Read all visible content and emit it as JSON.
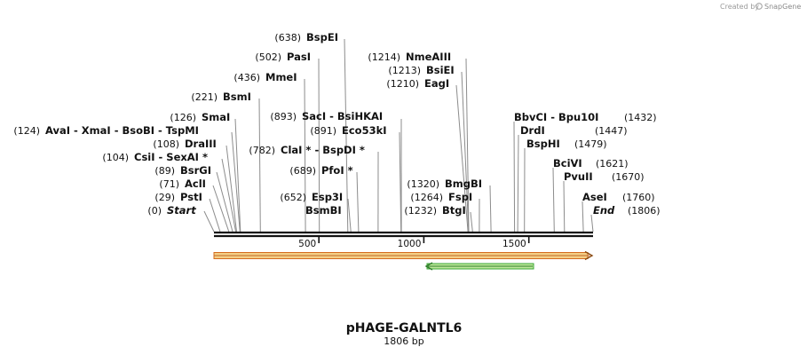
{
  "credit": {
    "text": "Created by",
    "brand": "SnapGene"
  },
  "map": {
    "name": "pHAGE-GALNTL6",
    "length_label": "1806 bp",
    "length": 1806,
    "ticks": [
      {
        "value": 500,
        "label": "500"
      },
      {
        "value": 1000,
        "label": "1000"
      },
      {
        "value": 1500,
        "label": "1500"
      }
    ],
    "colors": {
      "backbone": "#111111",
      "feature_fwd_fill": "#f4cf86",
      "feature_fwd_edge": "#d46b1f",
      "feature_rev_fill": "#bde89a",
      "feature_rev_edge": "#3aa634",
      "leader": "#8c8c8c"
    },
    "features": [
      {
        "name": "forward-feature",
        "start": 0,
        "end": 1806,
        "direction": "forward"
      },
      {
        "name": "reverse-feature",
        "start": 1010,
        "end": 1530,
        "direction": "reverse"
      }
    ]
  },
  "sites": [
    {
      "pos": 0,
      "pos_label": "(0)",
      "name": "Start",
      "italic": true
    },
    {
      "pos": 29,
      "pos_label": "(29)",
      "name": "PstI"
    },
    {
      "pos": 71,
      "pos_label": "(71)",
      "name": "AclI"
    },
    {
      "pos": 89,
      "pos_label": "(89)",
      "name": "BsrGI"
    },
    {
      "pos": 104,
      "pos_label": "(104)",
      "name": "CsiI  -  SexAI *"
    },
    {
      "pos": 108,
      "pos_label": "(108)",
      "name": "DraIII"
    },
    {
      "pos": 124,
      "pos_label": "(124)",
      "name": "AvaI  -  XmaI  -  BsoBI  -  TspMI"
    },
    {
      "pos": 126,
      "pos_label": "(126)",
      "name": "SmaI"
    },
    {
      "pos": 221,
      "pos_label": "(221)",
      "name": "BsmI"
    },
    {
      "pos": 436,
      "pos_label": "(436)",
      "name": "MmeI"
    },
    {
      "pos": 502,
      "pos_label": "(502)",
      "name": "PasI"
    },
    {
      "pos": 638,
      "pos_label": "(638)",
      "name": "BspEI"
    },
    {
      "pos": 652,
      "pos_label": "(652)",
      "name": "Esp3I"
    },
    {
      "pos": 652,
      "pos_label": "",
      "name": "BsmBI"
    },
    {
      "pos": 689,
      "pos_label": "(689)",
      "name": "PfoI *"
    },
    {
      "pos": 782,
      "pos_label": "(782)",
      "name": "ClaI *  -  BspDI *"
    },
    {
      "pos": 891,
      "pos_label": "(891)",
      "name": "Eco53kI"
    },
    {
      "pos": 893,
      "pos_label": "(893)",
      "name": "SacI  -  BsiHKAI"
    },
    {
      "pos": 1210,
      "pos_label": "(1210)",
      "name": "EagI"
    },
    {
      "pos": 1213,
      "pos_label": "(1213)",
      "name": "BsiEI"
    },
    {
      "pos": 1214,
      "pos_label": "(1214)",
      "name": "NmeAIII"
    },
    {
      "pos": 1232,
      "pos_label": "(1232)",
      "name": "BtgI"
    },
    {
      "pos": 1264,
      "pos_label": "(1264)",
      "name": "FspI"
    },
    {
      "pos": 1320,
      "pos_label": "(1320)",
      "name": "BmgBI"
    },
    {
      "pos": 1432,
      "pos_label": "(1432)",
      "name": "BbvCI  -  Bpu10I"
    },
    {
      "pos": 1447,
      "pos_label": "(1447)",
      "name": "DrdI"
    },
    {
      "pos": 1479,
      "pos_label": "(1479)",
      "name": "BspHI"
    },
    {
      "pos": 1621,
      "pos_label": "(1621)",
      "name": "BciVI"
    },
    {
      "pos": 1670,
      "pos_label": "(1670)",
      "name": "PvuII"
    },
    {
      "pos": 1760,
      "pos_label": "(1760)",
      "name": "AseI"
    },
    {
      "pos": 1806,
      "pos_label": "(1806)",
      "name": "End",
      "italic": true
    }
  ]
}
